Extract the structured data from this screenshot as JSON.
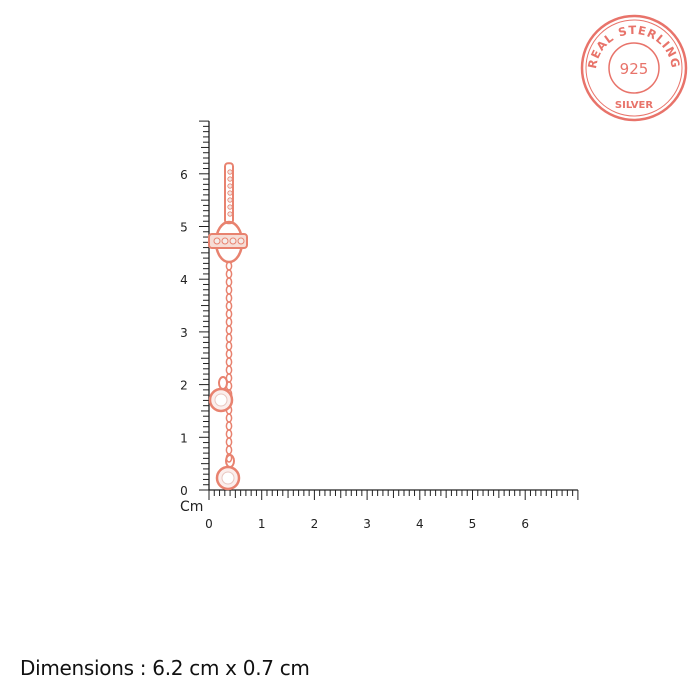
{
  "stamp": {
    "top_text": "REAL STERLING",
    "center_text": "925",
    "bottom_text": "SILVER",
    "color": "#e8736a"
  },
  "ruler": {
    "unit_label": "Cm",
    "vertical_ticks": [
      "0",
      "1",
      "2",
      "3",
      "4",
      "5",
      "6"
    ],
    "horizontal_ticks": [
      "0",
      "1",
      "2",
      "3",
      "4",
      "5",
      "6"
    ],
    "max_cm": 7,
    "color": "#222222"
  },
  "product": {
    "color": "#e8826f",
    "top_cm": 6.2,
    "width_cm": 0.7
  },
  "caption": "Dimensions : 6.2 cm x 0.7 cm"
}
